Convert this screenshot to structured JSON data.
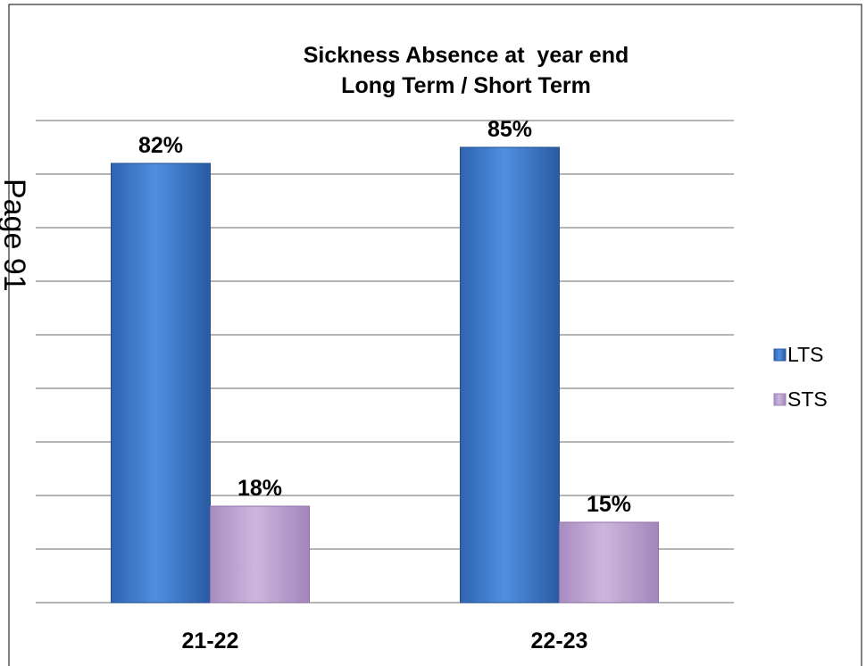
{
  "page_label": "Page 91",
  "chart_data": {
    "type": "bar",
    "title": "Sickness Absence at  year end",
    "subtitle": "Long Term / Short Term",
    "categories": [
      "21-22",
      "22-23"
    ],
    "series": [
      {
        "name": "LTS",
        "values": [
          82,
          85
        ],
        "labels": [
          "82%",
          "85%"
        ],
        "color": "#4a86d8"
      },
      {
        "name": "STS",
        "values": [
          18,
          15
        ],
        "labels": [
          "18%",
          "15%"
        ],
        "color": "#c4a9d6"
      }
    ],
    "ylim": [
      0,
      90
    ],
    "grid": true,
    "legend": "right"
  }
}
